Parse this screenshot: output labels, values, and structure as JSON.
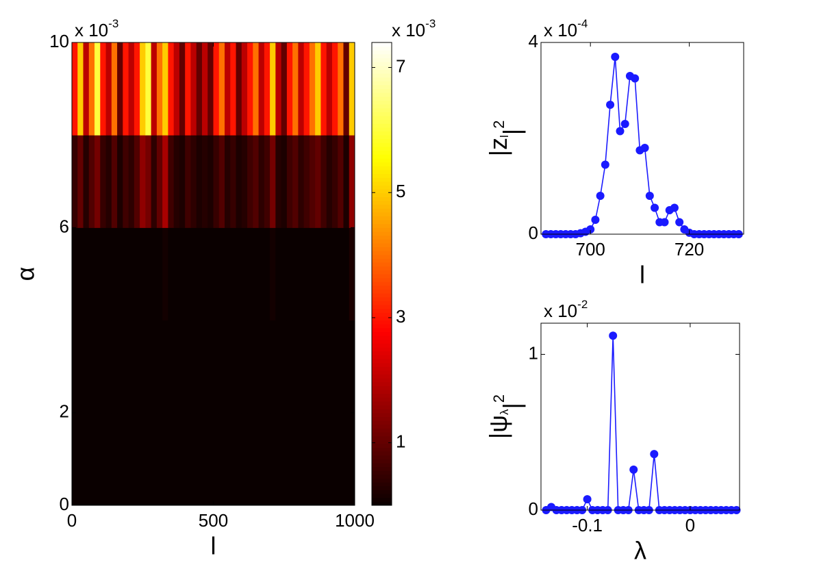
{
  "chart_data": [
    {
      "type": "heatmap",
      "x": [
        10,
        30,
        50,
        70,
        90,
        110,
        130,
        150,
        170,
        190,
        210,
        230,
        250,
        270,
        290,
        310,
        330,
        350,
        370,
        390,
        410,
        430,
        450,
        470,
        490,
        510,
        530,
        550,
        570,
        590,
        610,
        630,
        650,
        670,
        690,
        710,
        730,
        750,
        770,
        790,
        810,
        830,
        850,
        870,
        890,
        910,
        930,
        950,
        970,
        990
      ],
      "y": [
        1,
        3,
        5,
        7,
        9
      ],
      "values": [
        [
          0,
          0,
          0,
          0,
          0,
          0,
          0,
          0,
          0,
          0,
          0,
          0,
          0,
          0,
          0,
          0,
          0,
          0,
          0,
          0,
          0,
          0,
          0,
          0,
          0,
          0,
          0,
          0,
          0,
          0,
          0,
          0,
          0,
          0,
          0,
          0,
          0,
          0,
          0,
          0,
          0,
          0,
          0,
          0,
          0,
          0,
          0,
          0,
          0,
          0
        ],
        [
          0,
          0,
          0,
          0,
          0,
          0,
          0,
          0,
          0,
          0,
          0,
          0,
          0,
          0,
          0,
          0,
          0,
          0,
          0,
          0,
          0,
          0,
          0,
          0,
          0,
          0,
          0,
          0,
          0,
          0,
          0,
          0,
          0,
          0,
          0,
          0,
          0,
          0,
          0,
          0,
          0,
          0,
          0,
          0,
          0,
          0,
          0,
          0,
          0,
          0
        ],
        [
          0,
          0,
          0,
          0,
          0,
          0,
          0,
          0,
          0,
          0,
          0,
          0,
          0,
          0,
          0,
          0,
          0.1,
          0,
          0,
          0,
          0,
          0,
          0,
          0,
          0,
          0,
          0,
          0,
          0,
          0,
          0,
          0,
          0,
          0,
          0,
          0.1,
          0,
          0,
          0,
          0,
          0,
          0,
          0,
          0,
          0,
          0,
          0,
          0,
          0,
          0.2
        ],
        [
          0.5,
          1,
          0.3,
          0.8,
          1.2,
          0.5,
          0.3,
          0.8,
          0.2,
          0.6,
          0.4,
          0.8,
          1.5,
          1.2,
          0.4,
          1,
          1.8,
          0.6,
          0.3,
          0.2,
          0.6,
          0.4,
          0.2,
          0.3,
          0.2,
          0.5,
          0.8,
          0.3,
          0.5,
          0.2,
          0.3,
          0.6,
          0.8,
          0.4,
          0.6,
          1.2,
          0.3,
          0.2,
          0.6,
          0.8,
          0.4,
          0.6,
          0.8,
          1,
          0.6,
          0.3,
          0.5,
          0.8,
          0.2,
          1.5
        ],
        [
          3,
          5,
          2,
          4,
          6,
          3,
          2,
          4,
          1,
          3,
          2,
          3,
          5,
          6,
          2,
          4,
          5,
          3,
          2,
          1,
          3,
          2,
          1,
          2,
          1,
          3,
          4,
          2,
          3,
          1,
          2,
          3,
          4,
          2,
          3,
          5,
          2,
          1,
          3,
          4,
          2,
          3,
          4,
          5,
          3,
          2,
          3,
          4,
          1,
          5
        ]
      ],
      "xlim": [
        0,
        1000
      ],
      "ylim": [
        0,
        10
      ],
      "xticks": [
        0,
        500,
        1000
      ],
      "yticks": [
        0,
        2,
        6,
        10
      ],
      "xlabel": "l",
      "ylabel": "α",
      "y_offset": {
        "base": "x 10",
        "exp": "-3"
      },
      "colormap": "hot",
      "clim": [
        0,
        7.4
      ],
      "colorbar_ticks": [
        1,
        3,
        5,
        7
      ],
      "colorbar_offset": {
        "base": "x 10",
        "exp": "-3"
      }
    },
    {
      "type": "line",
      "color": "#1a1aff",
      "x": [
        691,
        692,
        693,
        694,
        695,
        696,
        697,
        698,
        699,
        700,
        701,
        702,
        703,
        704,
        705,
        706,
        707,
        708,
        709,
        710,
        711,
        712,
        713,
        714,
        715,
        716,
        717,
        718,
        719,
        720,
        721,
        722,
        723,
        724,
        725,
        726,
        727,
        728,
        729,
        730
      ],
      "values": [
        0,
        0,
        0,
        0,
        0,
        0,
        0,
        0.02,
        0.05,
        0.1,
        0.3,
        0.8,
        1.45,
        2.7,
        3.7,
        2.15,
        2.3,
        3.3,
        3.25,
        1.75,
        1.8,
        0.8,
        0.55,
        0.25,
        0.25,
        0.5,
        0.55,
        0.25,
        0.1,
        0.03,
        0,
        0,
        0,
        0,
        0,
        0,
        0,
        0,
        0,
        0
      ],
      "xlim": [
        690,
        731
      ],
      "ylim": [
        0,
        4
      ],
      "xticks": [
        700,
        720
      ],
      "yticks": [
        0,
        4
      ],
      "xlabel": "l",
      "ylabel": {
        "base": "|z",
        "sub": "l",
        "close": "|",
        "sup": "2"
      },
      "y_offset": {
        "base": "x 10",
        "exp": "-4"
      }
    },
    {
      "type": "line",
      "color": "#1a1aff",
      "x": [
        -0.14,
        -0.135,
        -0.13,
        -0.125,
        -0.12,
        -0.115,
        -0.11,
        -0.105,
        -0.1,
        -0.095,
        -0.09,
        -0.085,
        -0.08,
        -0.075,
        -0.07,
        -0.065,
        -0.06,
        -0.055,
        -0.05,
        -0.045,
        -0.04,
        -0.035,
        -0.03,
        -0.025,
        -0.02,
        -0.015,
        -0.01,
        -0.005,
        0,
        0.005,
        0.01,
        0.015,
        0.02,
        0.025,
        0.03,
        0.035,
        0.04,
        0.045
      ],
      "values": [
        0,
        0.02,
        0,
        0,
        0,
        0,
        0,
        0,
        0.07,
        0,
        0,
        0,
        0,
        1.12,
        0,
        0,
        0,
        0.26,
        0,
        0,
        0,
        0.36,
        0,
        0,
        0,
        0,
        0,
        0,
        0,
        0,
        0,
        0,
        0,
        0,
        0,
        0,
        0,
        0
      ],
      "xlim": [
        -0.145,
        0.048
      ],
      "ylim": [
        0,
        1.2
      ],
      "xticks": [
        -0.1,
        0
      ],
      "yticks": [
        0,
        1
      ],
      "xlabel": "λ",
      "ylabel": {
        "base": "|ψ",
        "sub": "λ",
        "close": "|",
        "sup": "2"
      },
      "y_offset": {
        "base": "x 10",
        "exp": "-2"
      }
    }
  ]
}
